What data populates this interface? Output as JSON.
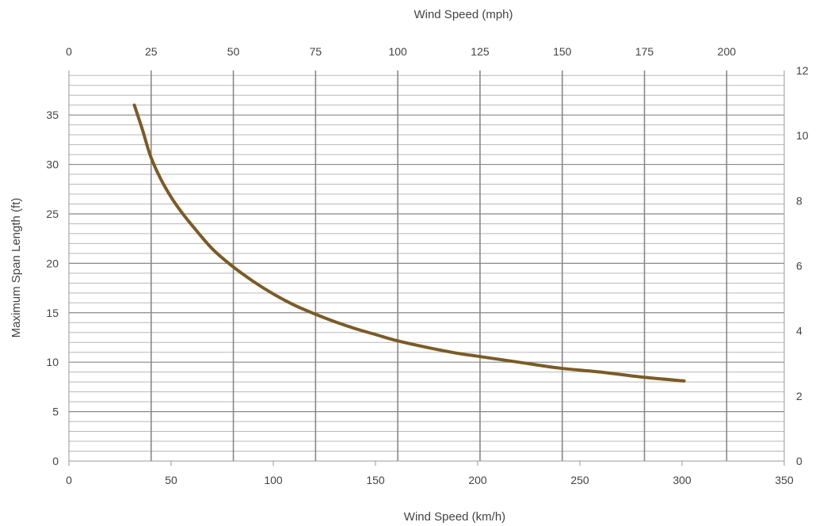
{
  "chart_data": {
    "type": "line",
    "title": "",
    "xlabel": "Wind Speed (km/h)",
    "x2label": "Wind Speed (mph)",
    "ylabel": "Maximum Span Length (ft)",
    "xlim": [
      0,
      350
    ],
    "ylim": [
      0,
      39.5
    ],
    "x2lim": [
      0,
      217.5
    ],
    "y2lim": [
      0,
      12
    ],
    "x_ticks": [
      "0",
      "50",
      "100",
      "150",
      "200",
      "250",
      "300",
      "350"
    ],
    "x2_ticks": [
      "0",
      "25",
      "50",
      "75",
      "100",
      "125",
      "150",
      "175",
      "200"
    ],
    "y_ticks": [
      "0",
      "5",
      "10",
      "15",
      "20",
      "25",
      "30",
      "35"
    ],
    "y2_ticks": [
      "0",
      "2",
      "4",
      "6",
      "8",
      "10",
      "12"
    ],
    "grid": true,
    "series": [
      {
        "color": "#7b5b26",
        "x": [
          32,
          36,
          40,
          45,
          50,
          55,
          60,
          70,
          80,
          90,
          100,
          110,
          120,
          130,
          140,
          150,
          160,
          175,
          190,
          200,
          220,
          240,
          260,
          280,
          301
        ],
        "y": [
          36,
          33.5,
          30.8,
          28.5,
          26.7,
          25.2,
          23.9,
          21.5,
          19.7,
          18.2,
          16.9,
          15.8,
          14.9,
          14.1,
          13.4,
          12.8,
          12.2,
          11.5,
          10.9,
          10.6,
          10,
          9.4,
          9,
          8.5,
          8.1
        ]
      }
    ]
  },
  "colors": {
    "grid_major": "#888888",
    "grid_minor": "#b8b8b8",
    "axis": "#999999"
  }
}
